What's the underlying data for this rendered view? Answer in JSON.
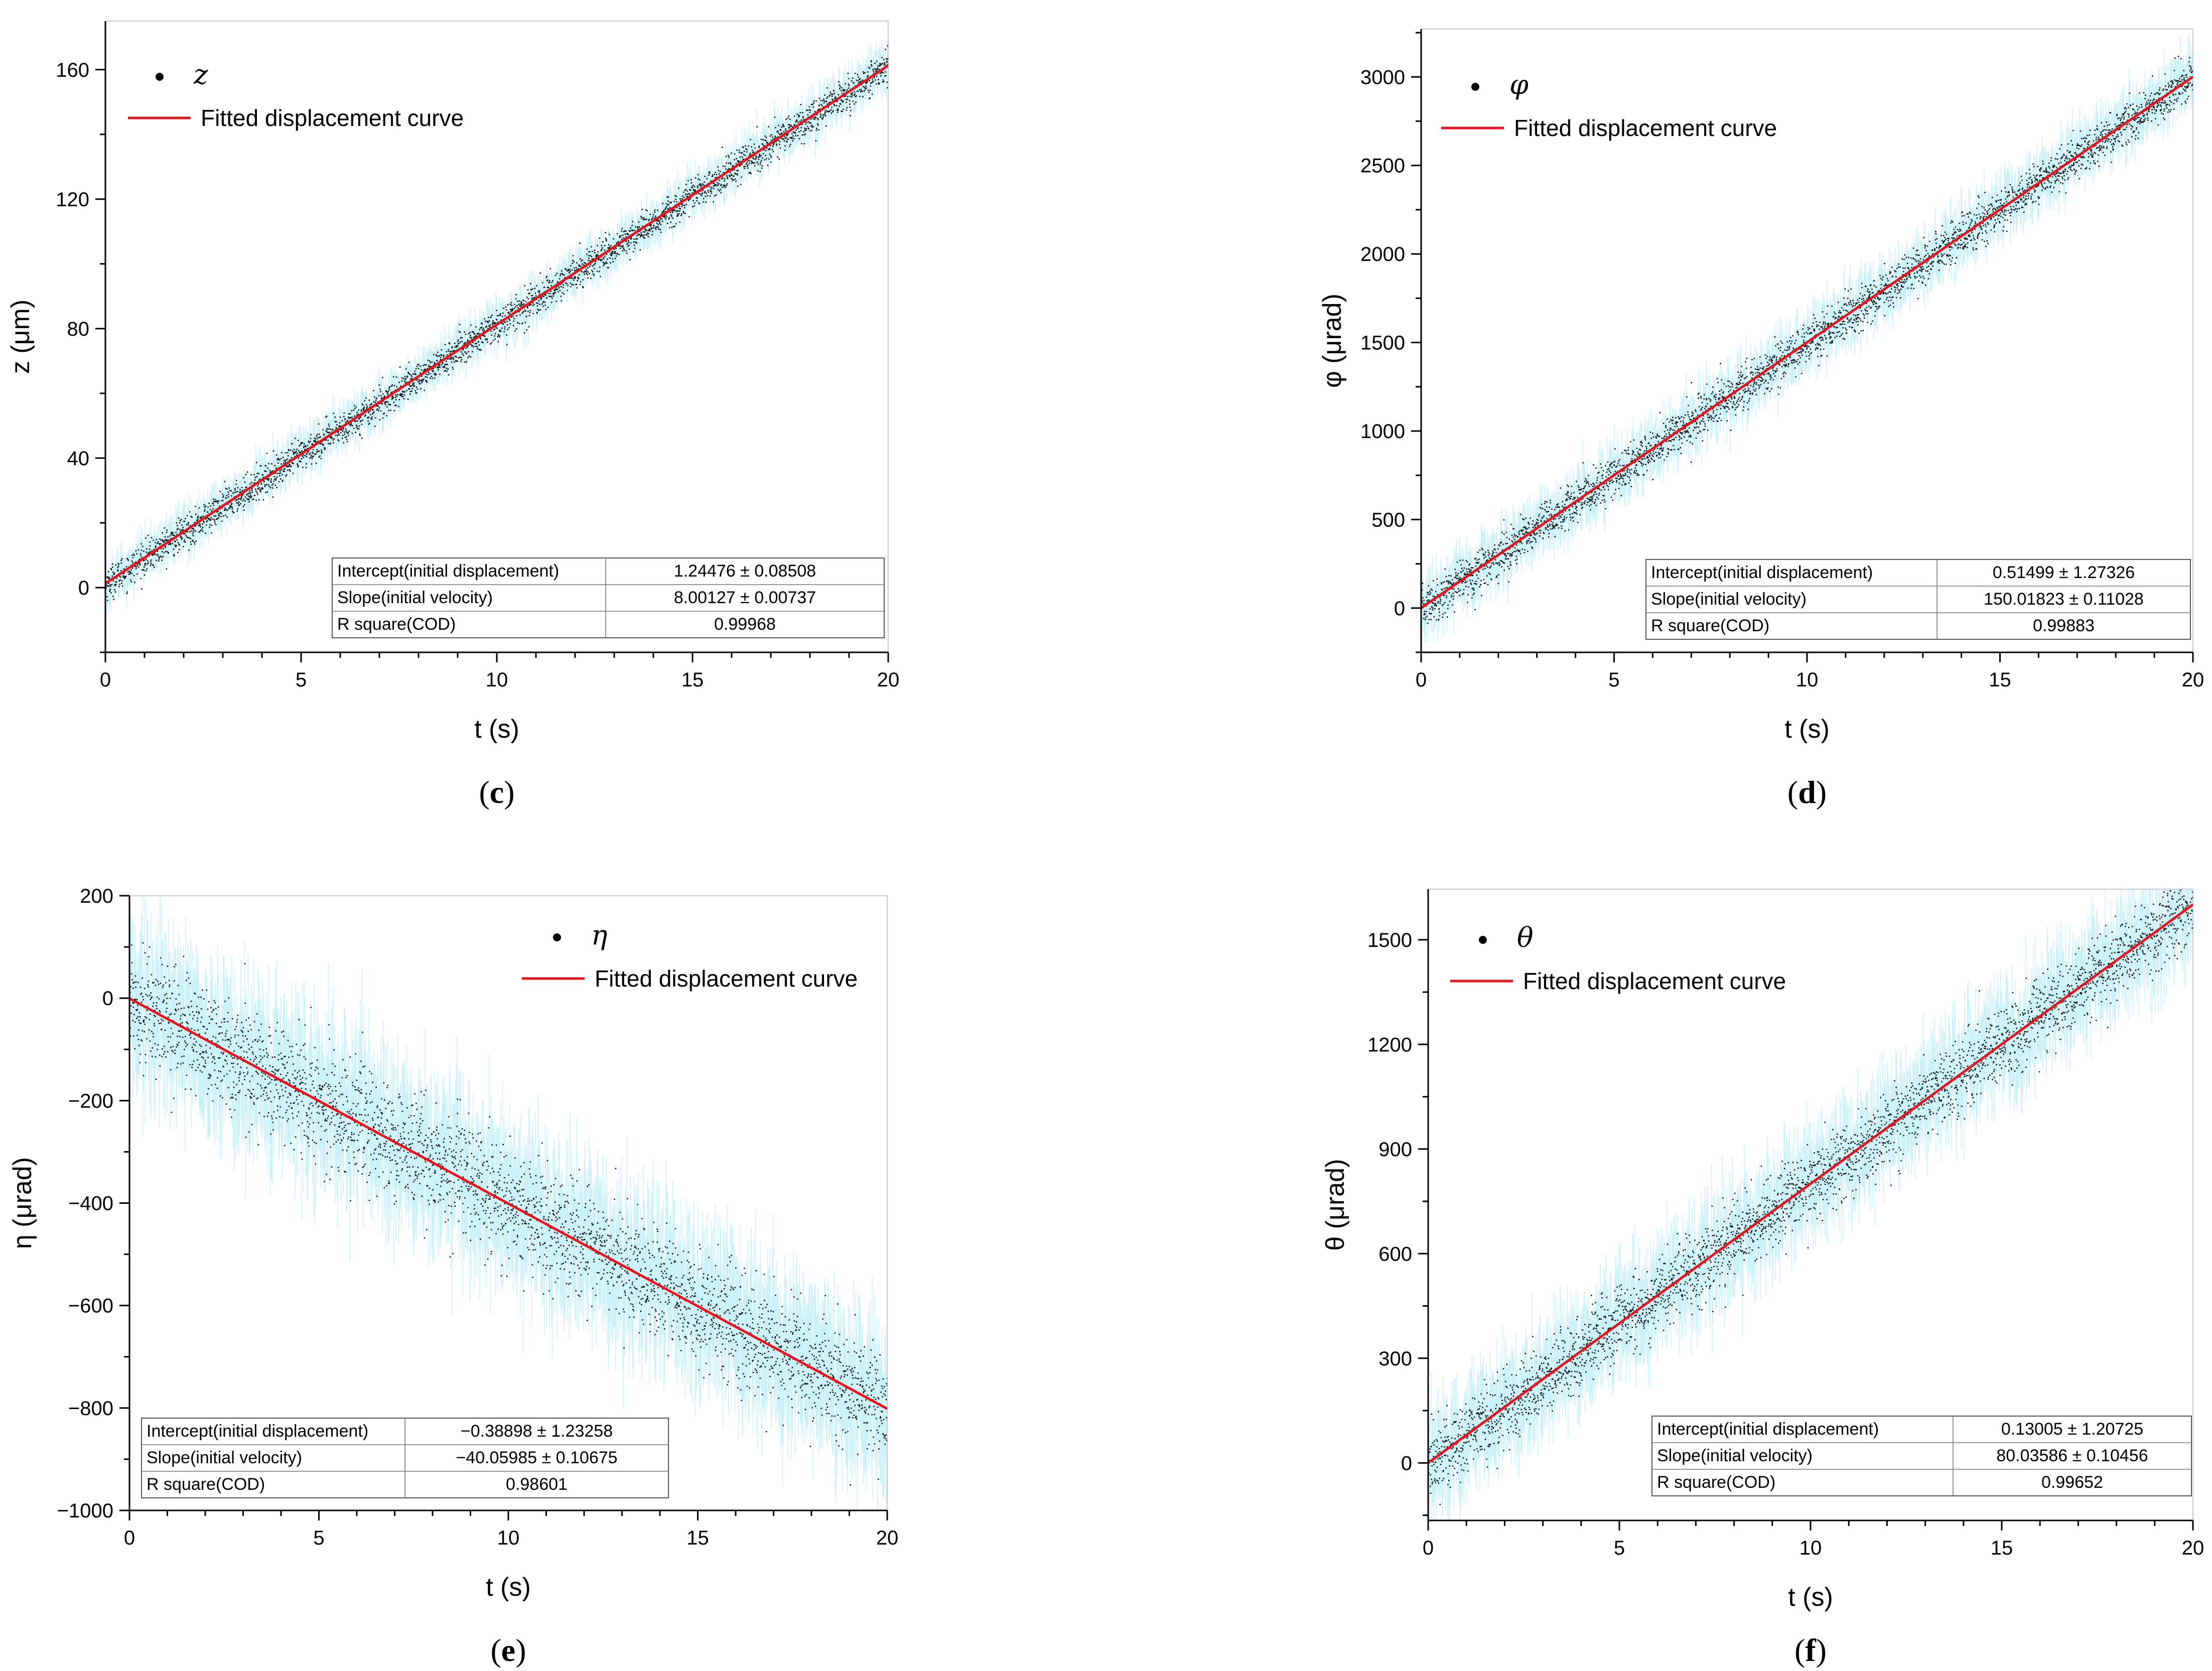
{
  "chart_data": [
    {
      "type": "scatter",
      "panel": "(c)",
      "panel_letter": "c",
      "series_symbol": "z",
      "legend_fit_label": "Fitted displacement curve",
      "xlabel": "t (s)",
      "ylabel": "z (μm)",
      "xlim": [
        0,
        20
      ],
      "ylim": [
        -20,
        175
      ],
      "xticks": [
        0,
        5,
        10,
        15,
        20
      ],
      "yticks": [
        0,
        40,
        80,
        120,
        160
      ],
      "fit": {
        "intercept": 1.24476,
        "slope": 8.00127
      },
      "noise_band": 2.5,
      "legend_position": "top-left",
      "stats_position": "bottom-right",
      "stats": [
        {
          "label": "Intercept(initial displacement)",
          "value": "1.24476 ± 0.08508"
        },
        {
          "label": "Slope(initial velocity)",
          "value": "8.00127 ± 0.00737"
        },
        {
          "label": "R square(COD)",
          "value": "0.99968"
        }
      ]
    },
    {
      "type": "scatter",
      "panel": "(d)",
      "panel_letter": "d",
      "series_symbol": "φ",
      "legend_fit_label": "Fitted displacement curve",
      "xlabel": "t (s)",
      "ylabel": "φ (μrad)",
      "xlim": [
        0,
        20
      ],
      "ylim": [
        -250,
        3270
      ],
      "xticks": [
        0,
        5,
        10,
        15,
        20
      ],
      "yticks": [
        0,
        500,
        1000,
        1500,
        2000,
        2500,
        3000
      ],
      "fit": {
        "intercept": 0.51499,
        "slope": 150.01823
      },
      "noise_band": 60,
      "legend_position": "top-left",
      "stats_position": "bottom-right",
      "stats": [
        {
          "label": "Intercept(initial displacement)",
          "value": "0.51499 ± 1.27326"
        },
        {
          "label": "Slope(initial velocity)",
          "value": "150.01823 ± 0.11028"
        },
        {
          "label": "R square(COD)",
          "value": "0.99883"
        }
      ]
    },
    {
      "type": "scatter",
      "panel": "(e)",
      "panel_letter": "e",
      "series_symbol": "η",
      "legend_fit_label": "Fitted displacement curve",
      "xlabel": "t (s)",
      "ylabel": "η (μrad)",
      "xlim": [
        0,
        20
      ],
      "ylim": [
        -1000,
        200
      ],
      "xticks": [
        0,
        5,
        10,
        15,
        20
      ],
      "yticks": [
        -1000,
        -800,
        -600,
        -400,
        -200,
        0,
        200
      ],
      "ytick_labels": [
        "−1000",
        "−800",
        "−600",
        "−400",
        "−200",
        "0",
        "200"
      ],
      "fit": {
        "intercept": -0.38898,
        "slope": -40.05985
      },
      "noise_band": 55,
      "legend_position": "top-right",
      "stats_position": "bottom-left",
      "stats": [
        {
          "label": "Intercept(initial displacement)",
          "value": "−0.38898 ± 1.23258"
        },
        {
          "label": "Slope(initial velocity)",
          "value": "−40.05985 ± 0.10675"
        },
        {
          "label": "R square(COD)",
          "value": "0.98601"
        }
      ]
    },
    {
      "type": "scatter",
      "panel": "(f)",
      "panel_letter": "f",
      "series_symbol": "θ",
      "legend_fit_label": "Fitted displacement curve",
      "xlabel": "t (s)",
      "ylabel": "θ (μrad)",
      "xlim": [
        0,
        20
      ],
      "ylim": [
        -165,
        1645
      ],
      "xticks": [
        0,
        5,
        10,
        15,
        20
      ],
      "yticks": [
        0,
        300,
        600,
        900,
        1200,
        1500
      ],
      "fit": {
        "intercept": 0.13005,
        "slope": 80.03586
      },
      "noise_band": 55,
      "legend_position": "top-left",
      "stats_position": "bottom-right",
      "stats": [
        {
          "label": "Intercept(initial displacement)",
          "value": "0.13005 ± 1.20725"
        },
        {
          "label": "Slope(initial velocity)",
          "value": "80.03586 ± 0.10456"
        },
        {
          "label": "R square(COD)",
          "value": "0.99652"
        }
      ]
    }
  ]
}
